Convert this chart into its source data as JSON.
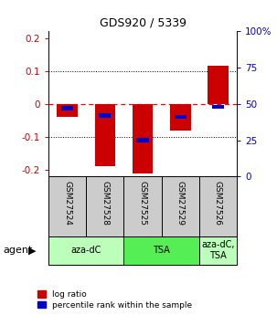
{
  "title": "GDS920 / 5339",
  "samples": [
    "GSM27524",
    "GSM27528",
    "GSM27525",
    "GSM27529",
    "GSM27526"
  ],
  "log_ratio": [
    -0.04,
    -0.19,
    -0.21,
    -0.08,
    0.115
  ],
  "pct_rank": [
    47,
    42,
    25,
    41,
    48
  ],
  "ylim": [
    -0.22,
    0.22
  ],
  "yticks_left": [
    -0.2,
    -0.1,
    0.0,
    0.1,
    0.2
  ],
  "yticks_right": [
    0,
    25,
    50,
    75,
    100
  ],
  "red_color": "#cc0000",
  "blue_color": "#0000cc",
  "groups": [
    {
      "label": "aza-dC",
      "indices": [
        0,
        1
      ],
      "color": "#bbffbb"
    },
    {
      "label": "TSA",
      "indices": [
        2,
        3
      ],
      "color": "#55ee55"
    },
    {
      "label": "aza-dC,\nTSA",
      "indices": [
        4
      ],
      "color": "#bbffbb"
    }
  ],
  "legend_red": "log ratio",
  "legend_blue": "percentile rank within the sample",
  "bg_color": "#ffffff",
  "sample_box_color": "#cccccc",
  "left_tick_color": "#cc0000",
  "right_tick_color": "#0000cc"
}
